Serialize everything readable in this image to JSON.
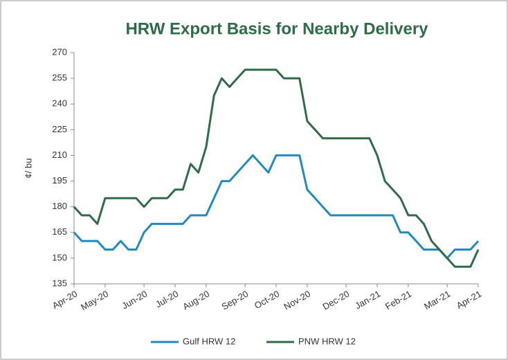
{
  "chart_data": {
    "type": "line",
    "title": "HRW Export Basis for Nearby Delivery",
    "y_label": "¢/ bu",
    "categories": [
      "Apr-20",
      null,
      null,
      null,
      "May-20",
      null,
      null,
      null,
      null,
      "Jun-20",
      null,
      null,
      null,
      "Jul-20",
      null,
      null,
      null,
      "Aug-20",
      null,
      null,
      null,
      null,
      "Sep-20",
      null,
      null,
      null,
      "Oct-20",
      null,
      null,
      null,
      "Nov-20",
      null,
      null,
      null,
      null,
      "Dec-20",
      null,
      null,
      null,
      "Jan-21",
      null,
      null,
      null,
      "Feb-21",
      null,
      null,
      null,
      null,
      "Mar-21",
      null,
      null,
      null,
      "Apr-21"
    ],
    "series": [
      {
        "name": "Gulf HRW 12",
        "color": "#1f8ac0",
        "values": [
          165,
          160,
          160,
          160,
          155,
          155,
          160,
          155,
          155,
          165,
          170,
          170,
          170,
          170,
          170,
          175,
          175,
          175,
          185,
          195,
          195,
          200,
          205,
          210,
          205,
          200,
          210,
          210,
          210,
          210,
          190,
          185,
          180,
          175,
          175,
          175,
          175,
          175,
          175,
          175,
          175,
          175,
          165,
          165,
          160,
          155,
          155,
          155,
          150,
          155,
          155,
          155,
          160
        ]
      },
      {
        "name": "PNW HRW 12",
        "color": "#2e6b47",
        "values": [
          180,
          175,
          175,
          170,
          185,
          185,
          185,
          185,
          185,
          180,
          185,
          185,
          185,
          190,
          190,
          205,
          200,
          215,
          245,
          255,
          250,
          255,
          260,
          260,
          260,
          260,
          260,
          255,
          255,
          255,
          230,
          225,
          220,
          220,
          220,
          220,
          220,
          220,
          220,
          210,
          195,
          190,
          185,
          175,
          175,
          170,
          160,
          155,
          150,
          145,
          145,
          145,
          155
        ]
      }
    ],
    "ylim": [
      135,
      270
    ],
    "yticks": [
      135,
      150,
      165,
      180,
      195,
      210,
      225,
      240,
      255,
      270
    ],
    "grid": false,
    "legend": "bottom"
  }
}
